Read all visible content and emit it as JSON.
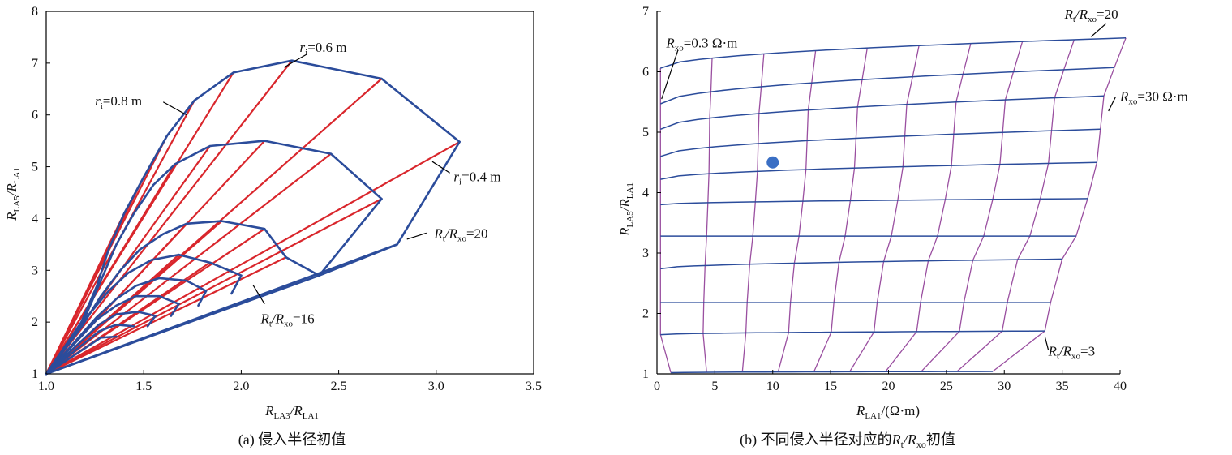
{
  "colors": {
    "blue": "#2b4c9b",
    "red": "#d9262c",
    "purple": "#9a4fa0",
    "dot": "#3a6fc4"
  },
  "chart_data": [
    {
      "type": "line",
      "caption": "(a) 侵入半径初值",
      "xlim": [
        1.0,
        3.5
      ],
      "ylim": [
        1,
        8
      ],
      "xticks": [
        "1.0",
        "1.5",
        "2.0",
        "2.5",
        "3.0",
        "3.5"
      ],
      "yticks": [
        "1",
        "2",
        "3",
        "4",
        "5",
        "6",
        "7",
        "8"
      ],
      "xlabel": {
        "main": "R",
        "sub1": "LA3",
        "slash": "/R",
        "sub2": "LA1"
      },
      "ylabel": {
        "main": "R",
        "sub1": "LA5",
        "slash": "/R",
        "sub2": "LA1"
      },
      "annotations": [
        {
          "id": "ri06",
          "prefix": "r",
          "sub": "i",
          "suffix": "=0.6 m",
          "ax": 2.22,
          "ay": 6.92,
          "bx": 2.34,
          "by": 7.18,
          "tx": 2.3,
          "ty": 7.22
        },
        {
          "id": "ri08",
          "prefix": "r",
          "sub": "i",
          "suffix": "=0.8 m",
          "ax": 1.72,
          "ay": 6.0,
          "bx": 1.6,
          "by": 6.25,
          "tx": 1.25,
          "ty": 6.18
        },
        {
          "id": "ri04",
          "prefix": "r",
          "sub": "i",
          "suffix": "=0.4 m",
          "ax": 2.98,
          "ay": 5.1,
          "bx": 3.07,
          "by": 4.88,
          "tx": 3.09,
          "ty": 4.72
        },
        {
          "id": "rt20",
          "prefix": "R",
          "sub": "t",
          "suffix": "/R",
          "sub2": "xo",
          "suffix2": "=20",
          "ax": 2.85,
          "ay": 3.6,
          "bx": 2.95,
          "by": 3.72,
          "tx": 2.99,
          "ty": 3.62
        },
        {
          "id": "rt16",
          "prefix": "R",
          "sub": "t",
          "suffix": "/R",
          "sub2": "xo",
          "suffix2": "=16",
          "ax": 2.06,
          "ay": 2.72,
          "bx": 2.12,
          "by": 2.35,
          "tx": 2.1,
          "ty": 1.98
        }
      ],
      "series": [
        {
          "color": "blue",
          "points": [
            [
              1.0,
              1.0
            ],
            [
              2.8,
              3.5
            ],
            [
              3.12,
              5.48
            ]
          ]
        },
        {
          "color": "blue",
          "points": [
            [
              3.12,
              5.48
            ],
            [
              2.72,
              6.7
            ],
            [
              2.26,
              7.05
            ],
            [
              1.96,
              6.82
            ],
            [
              1.76,
              6.28
            ],
            [
              1.62,
              5.6
            ],
            [
              1.5,
              4.8
            ],
            [
              1.4,
              4.1
            ],
            [
              1.32,
              3.4
            ],
            [
              1.26,
              2.7
            ],
            [
              1.18,
              2.0
            ],
            [
              1.0,
              1.0
            ]
          ]
        },
        {
          "color": "blue",
          "points": [
            [
              1.0,
              1.0
            ],
            [
              2.4,
              2.9
            ],
            [
              2.72,
              4.38
            ]
          ]
        },
        {
          "color": "blue",
          "points": [
            [
              2.72,
              4.38
            ],
            [
              2.46,
              5.25
            ],
            [
              2.12,
              5.5
            ],
            [
              1.84,
              5.4
            ],
            [
              1.66,
              5.05
            ],
            [
              1.55,
              4.65
            ],
            [
              1.45,
              4.1
            ],
            [
              1.36,
              3.5
            ],
            [
              1.28,
              2.8
            ],
            [
              1.2,
              2.1
            ],
            [
              1.0,
              1.0
            ]
          ]
        },
        {
          "color": "blue",
          "points": [
            [
              2.23,
              3.25
            ],
            [
              2.12,
              3.8
            ],
            [
              1.9,
              3.95
            ],
            [
              1.72,
              3.9
            ],
            [
              1.6,
              3.7
            ],
            [
              1.48,
              3.4
            ],
            [
              1.38,
              3.0
            ],
            [
              1.28,
              2.5
            ],
            [
              1.18,
              1.9
            ],
            [
              1.0,
              1.0
            ]
          ]
        },
        {
          "color": "blue",
          "points": [
            [
              2.0,
              2.9
            ],
            [
              1.84,
              3.15
            ],
            [
              1.68,
              3.3
            ],
            [
              1.54,
              3.2
            ],
            [
              1.42,
              2.95
            ],
            [
              1.32,
              2.6
            ],
            [
              1.22,
              2.15
            ],
            [
              1.0,
              1.0
            ]
          ]
        },
        {
          "color": "blue",
          "points": [
            [
              1.82,
              2.6
            ],
            [
              1.72,
              2.8
            ],
            [
              1.58,
              2.85
            ],
            [
              1.46,
              2.7
            ],
            [
              1.36,
              2.45
            ],
            [
              1.26,
              2.1
            ],
            [
              1.0,
              1.0
            ]
          ]
        },
        {
          "color": "blue",
          "points": [
            [
              1.68,
              2.35
            ],
            [
              1.58,
              2.5
            ],
            [
              1.46,
              2.5
            ],
            [
              1.36,
              2.32
            ],
            [
              1.26,
              2.05
            ],
            [
              1.0,
              1.0
            ]
          ]
        },
        {
          "color": "blue",
          "points": [
            [
              1.56,
              2.12
            ],
            [
              1.47,
              2.2
            ],
            [
              1.36,
              2.15
            ],
            [
              1.27,
              1.95
            ],
            [
              1.0,
              1.0
            ]
          ]
        },
        {
          "color": "blue",
          "points": [
            [
              1.45,
              1.92
            ],
            [
              1.36,
              1.95
            ],
            [
              1.27,
              1.82
            ],
            [
              1.0,
              1.0
            ]
          ]
        },
        {
          "color": "blue",
          "points": [
            [
              1.36,
              1.72
            ],
            [
              1.28,
              1.7
            ],
            [
              1.0,
              1.0
            ]
          ]
        },
        {
          "color": "blue",
          "points": [
            [
              2.4,
              2.9
            ],
            [
              2.8,
              3.5
            ]
          ]
        },
        {
          "color": "blue",
          "points": [
            [
              2.23,
              3.25
            ],
            [
              2.4,
              2.9
            ]
          ]
        },
        {
          "color": "blue",
          "points": [
            [
              2.0,
              2.9
            ],
            [
              1.95,
              2.55
            ]
          ]
        },
        {
          "color": "blue",
          "points": [
            [
              1.82,
              2.6
            ],
            [
              1.78,
              2.32
            ]
          ]
        },
        {
          "color": "blue",
          "points": [
            [
              1.68,
              2.35
            ],
            [
              1.64,
              2.12
            ]
          ]
        },
        {
          "color": "blue",
          "points": [
            [
              1.56,
              2.12
            ],
            [
              1.52,
              1.92
            ]
          ]
        },
        {
          "color": "red",
          "points": [
            [
              1.0,
              1.0
            ],
            [
              3.12,
              5.48
            ]
          ]
        },
        {
          "color": "red",
          "points": [
            [
              1.0,
              1.0
            ],
            [
              2.72,
              6.7
            ]
          ]
        },
        {
          "color": "red",
          "points": [
            [
              1.0,
              1.0
            ],
            [
              2.26,
              7.05
            ]
          ]
        },
        {
          "color": "red",
          "points": [
            [
              1.0,
              1.0
            ],
            [
              1.96,
              6.82
            ]
          ]
        },
        {
          "color": "red",
          "points": [
            [
              1.0,
              1.0
            ],
            [
              1.76,
              6.28
            ]
          ]
        },
        {
          "color": "red",
          "points": [
            [
              1.0,
              1.0
            ],
            [
              1.62,
              5.6
            ]
          ]
        },
        {
          "color": "red",
          "points": [
            [
              1.0,
              1.0
            ],
            [
              1.5,
              4.8
            ]
          ]
        },
        {
          "color": "red",
          "points": [
            [
              1.0,
              1.0
            ],
            [
              1.4,
              4.1
            ]
          ]
        },
        {
          "color": "red",
          "points": [
            [
              1.0,
              1.0
            ],
            [
              1.32,
              3.4
            ]
          ]
        },
        {
          "color": "red",
          "points": [
            [
              1.0,
              1.0
            ],
            [
              2.72,
              4.38
            ]
          ]
        },
        {
          "color": "red",
          "points": [
            [
              1.0,
              1.0
            ],
            [
              2.46,
              5.25
            ]
          ]
        },
        {
          "color": "red",
          "points": [
            [
              1.0,
              1.0
            ],
            [
              2.12,
              5.5
            ]
          ]
        },
        {
          "color": "red",
          "points": [
            [
              1.0,
              1.0
            ],
            [
              1.84,
              5.4
            ]
          ]
        },
        {
          "color": "red",
          "points": [
            [
              1.0,
              1.0
            ],
            [
              1.66,
              5.05
            ]
          ]
        },
        {
          "color": "red",
          "points": [
            [
              1.0,
              1.0
            ],
            [
              2.23,
              3.25
            ]
          ]
        },
        {
          "color": "red",
          "points": [
            [
              1.0,
              1.0
            ],
            [
              2.12,
              3.8
            ]
          ]
        },
        {
          "color": "red",
          "points": [
            [
              1.0,
              1.0
            ],
            [
              1.9,
              3.95
            ]
          ]
        },
        {
          "color": "red",
          "points": [
            [
              1.0,
              1.0
            ],
            [
              1.72,
              3.9
            ]
          ]
        },
        {
          "color": "red",
          "points": [
            [
              1.0,
              1.0
            ],
            [
              1.84,
              3.15
            ]
          ]
        },
        {
          "color": "red",
          "points": [
            [
              1.0,
              1.0
            ],
            [
              1.68,
              3.3
            ]
          ]
        }
      ]
    },
    {
      "type": "line",
      "caption": {
        "pre": "(b) 不同侵入半径对应的",
        "r": "R",
        "sub1": "t",
        "mid": "/R",
        "sub2": "xo",
        "post": "初值"
      },
      "xlim": [
        0,
        40
      ],
      "ylim": [
        1,
        7
      ],
      "xticks": [
        "0",
        "5",
        "10",
        "15",
        "20",
        "25",
        "30",
        "35",
        "40"
      ],
      "yticks": [
        "1",
        "2",
        "3",
        "4",
        "5",
        "6",
        "7"
      ],
      "xlabel": {
        "main": "R",
        "sub1": "LA1",
        "rest": "/(Ω·m)"
      },
      "ylabel": {
        "main": "R",
        "sub1": "LA5",
        "slash": "/R",
        "sub2": "LA1"
      },
      "marker": {
        "x": 10,
        "y": 4.5
      },
      "annotations": [
        {
          "id": "rxo03",
          "prefix": "R",
          "sub": "xo",
          "suffix": "=0.3 Ω·m",
          "ax": 0.4,
          "ay": 5.55,
          "bx": 1.8,
          "by": 6.35,
          "tx": 0.8,
          "ty": 6.4
        },
        {
          "id": "rtxo20",
          "prefix": "R",
          "sub": "t",
          "suffix": "/R",
          "sub2": "xo",
          "suffix2": "=20",
          "ax": 37.5,
          "ay": 6.58,
          "bx": 38.8,
          "by": 6.8,
          "tx": 35.2,
          "ty": 6.88
        },
        {
          "id": "rxo30",
          "prefix": "R",
          "sub": "xo",
          "suffix": "=30 Ω·m",
          "ax": 39.0,
          "ay": 5.35,
          "bx": 39.6,
          "by": 5.58,
          "tx": 40.0,
          "ty": 5.52
        },
        {
          "id": "rtxo3",
          "prefix": "R",
          "sub": "t",
          "suffix": "/R",
          "sub2": "xo",
          "suffix2": "=3",
          "ax": 33.5,
          "ay": 1.62,
          "bx": 33.8,
          "by": 1.4,
          "tx": 33.8,
          "ty": 1.3
        }
      ],
      "x_edges": [
        0.2,
        4.7,
        9.2,
        13.7,
        18.3,
        22.8,
        27.3,
        31.8,
        36.3,
        40.8
      ],
      "rows": [
        {
          "y": 6.06,
          "dy": 0.5,
          "start": 0.3,
          "end": 40.5,
          "purple_end": 40.5
        },
        {
          "y": 5.47,
          "dy": 0.6,
          "start": 0.3,
          "end": 39.5,
          "purple_end": 39.5
        },
        {
          "y": 5.05,
          "dy": 0.55,
          "start": 0.3,
          "end": 38.6,
          "purple_end": 38.6
        },
        {
          "y": 4.6,
          "dy": 0.45,
          "start": 0.3,
          "end": 38.3,
          "purple_end": 38.3
        },
        {
          "y": 4.22,
          "dy": 0.28,
          "start": 0.3,
          "end": 38.0,
          "purple_end": 38.0
        },
        {
          "y": 3.8,
          "dy": 0.1,
          "start": 0.3,
          "end": 37.2,
          "purple_end": 37.2
        },
        {
          "y": 3.28,
          "dy": 0.0,
          "start": 0.3,
          "end": 36.2,
          "purple_end": 36.2
        },
        {
          "y": 2.74,
          "dy": 0.16,
          "start": 0.3,
          "end": 35.0,
          "purple_end": 35.0
        },
        {
          "y": 2.18,
          "dy": 0.0,
          "start": 0.3,
          "end": 34.0,
          "purple_end": 34.0
        },
        {
          "y": 1.65,
          "dy": 0.06,
          "start": 0.3,
          "end": 33.5,
          "purple_end": 33.5
        },
        {
          "y": 1.02,
          "dy": 0.02,
          "start": 1.2,
          "end": 29.0,
          "purple_end": 29.0
        }
      ]
    }
  ]
}
